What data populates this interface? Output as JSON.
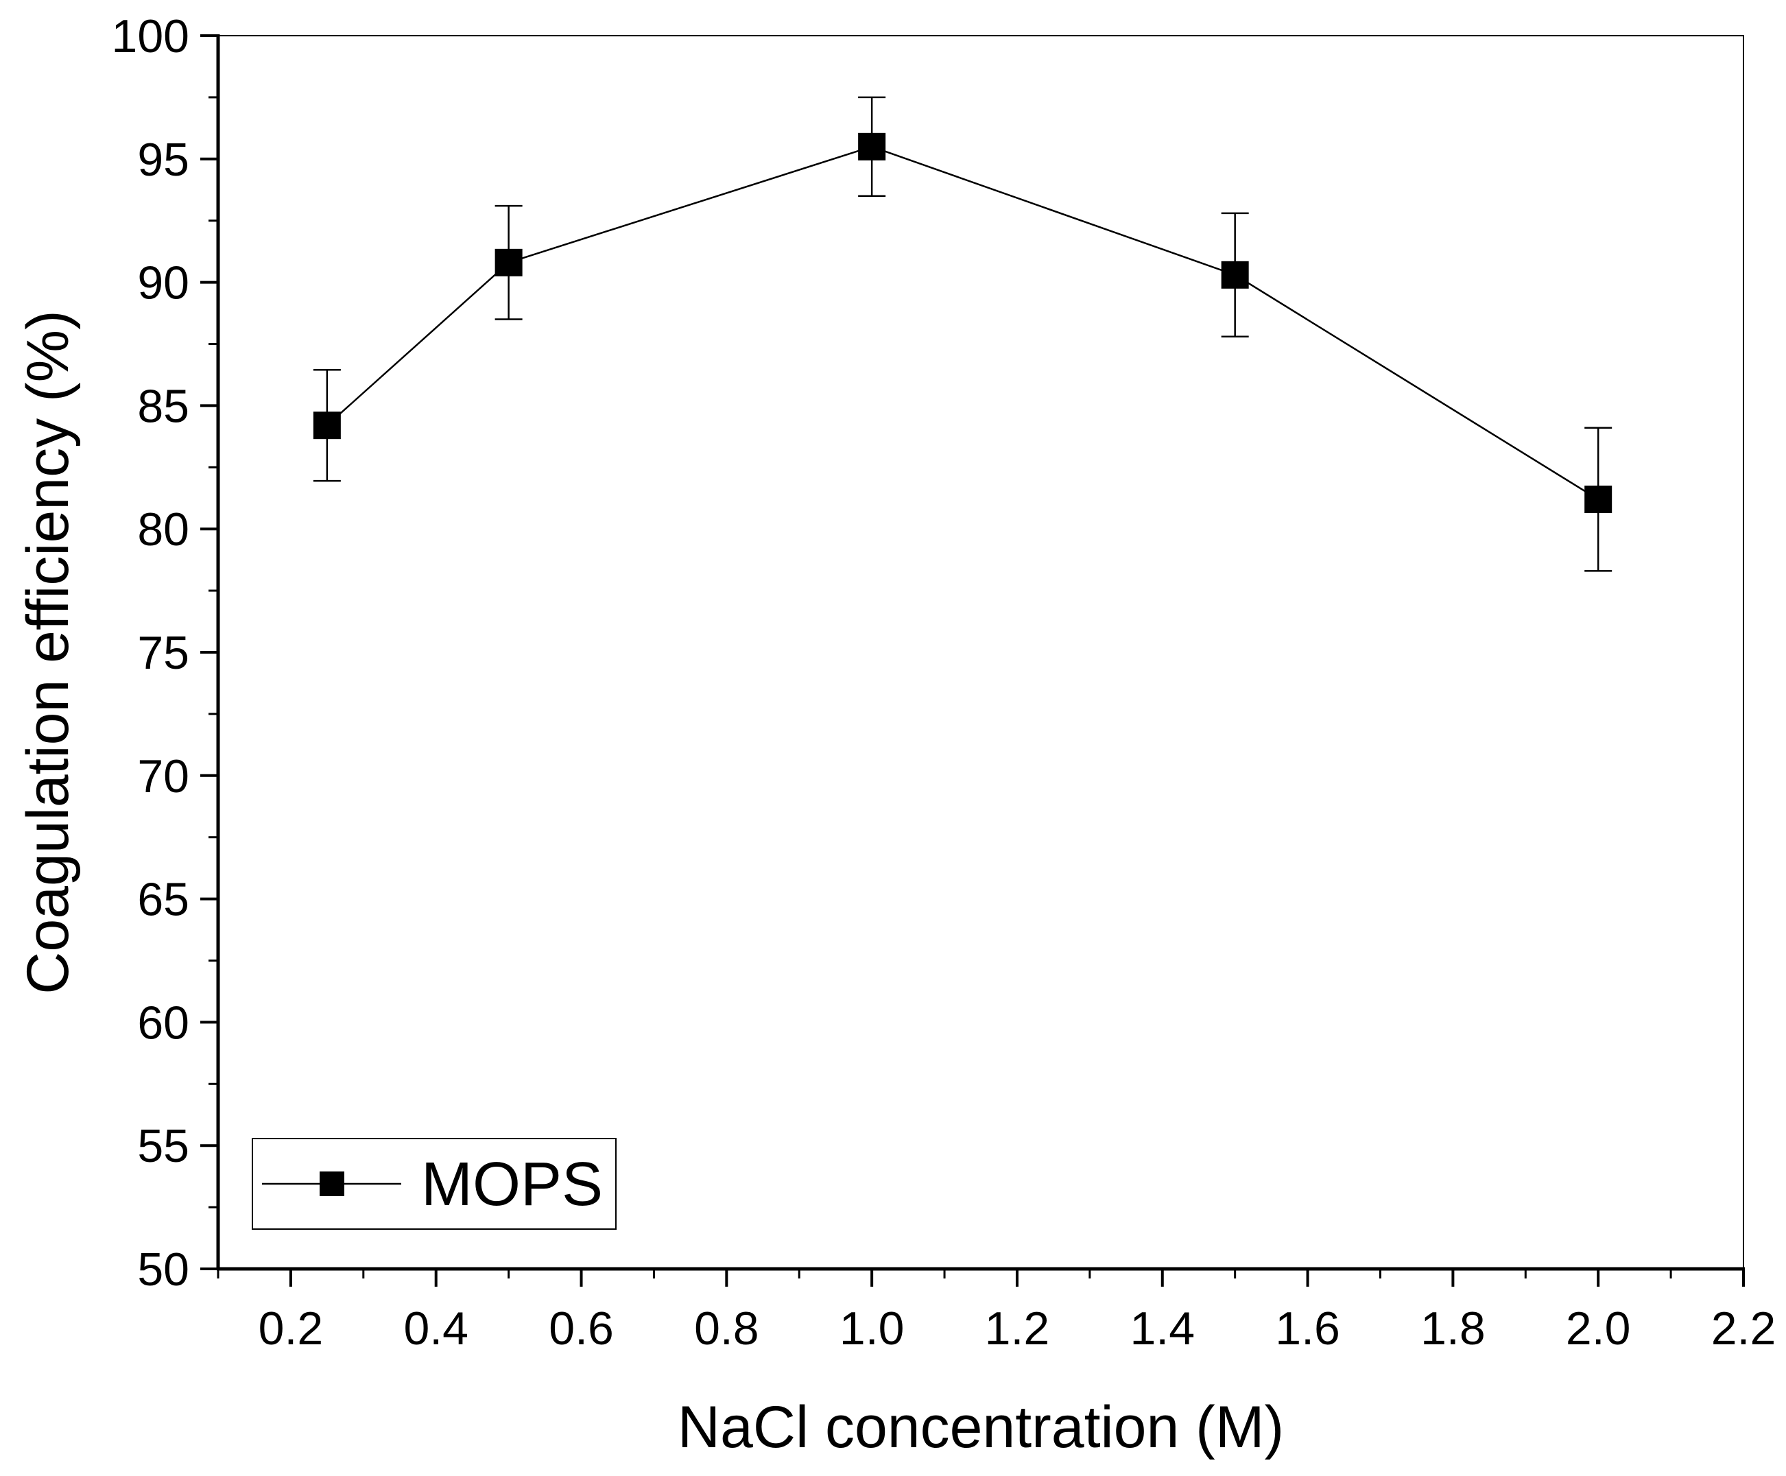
{
  "chart_data": {
    "type": "line",
    "xlabel": "NaCl concentration (M)",
    "ylabel": "Coagulation efficiency (%)",
    "xlim": [
      0.1,
      2.2
    ],
    "ylim": [
      50,
      100
    ],
    "x_ticks": [
      0.2,
      0.4,
      0.6,
      0.8,
      1.0,
      1.2,
      1.4,
      1.6,
      1.8,
      2.0,
      2.2
    ],
    "x_tick_labels": [
      "0.2",
      "0.4",
      "0.6",
      "0.8",
      "1.0",
      "1.2",
      "1.4",
      "1.6",
      "1.8",
      "2.0",
      "2.2"
    ],
    "y_ticks": [
      50,
      55,
      60,
      65,
      70,
      75,
      80,
      85,
      90,
      95,
      100
    ],
    "y_tick_labels": [
      "50",
      "55",
      "60",
      "65",
      "70",
      "75",
      "80",
      "85",
      "90",
      "95",
      "100"
    ],
    "x_minor_step": 0.1,
    "y_minor_step": 2.5,
    "grid": false,
    "legend_position": "bottom-left",
    "series": [
      {
        "name": "MOPS",
        "marker": "square",
        "color": "#000000",
        "x": [
          0.25,
          0.5,
          1.0,
          1.5,
          2.0
        ],
        "values": [
          84.2,
          90.8,
          95.5,
          90.3,
          81.2
        ],
        "errors": [
          2.25,
          2.3,
          2.0,
          2.5,
          2.9
        ]
      }
    ]
  }
}
